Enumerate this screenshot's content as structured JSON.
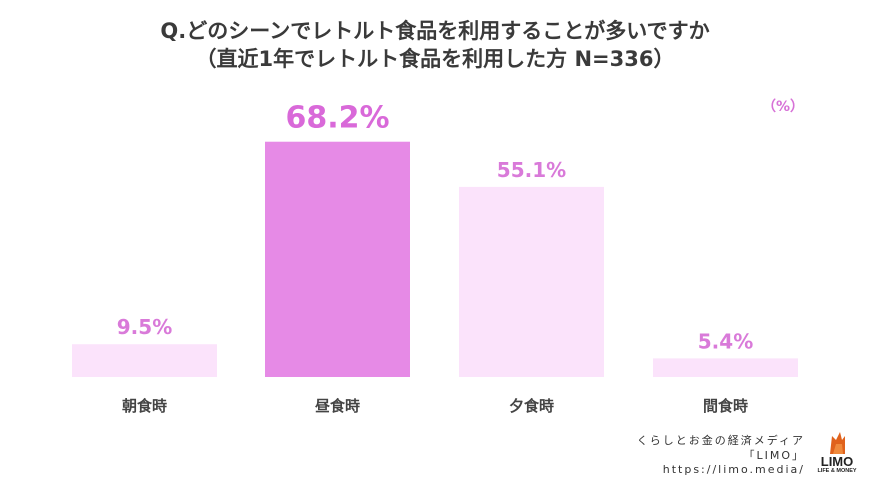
{
  "title_line1": "Q.どのシーンでレトルト食品を利用することが多いですか",
  "title_line2": "（直近1年でレトルト食品を利用した方 N=336）",
  "unit_label": "（%）",
  "footer": {
    "line1": "くらしとお金の経済メディア",
    "line2": "「LIMO」",
    "line3": "https://limo.media/"
  },
  "logo": {
    "word": "LIMO",
    "sub": "LIFE & MONEY",
    "icon": "fox-icon"
  },
  "colors": {
    "highlight": "#e68ae6",
    "normal": "#fbe3fb",
    "label": "#d97ad9",
    "highlight_label": "#d969d9",
    "category": "#444444"
  },
  "chart_data": {
    "type": "bar",
    "categories": [
      "朝食時",
      "昼食時",
      "夕食時",
      "間食時"
    ],
    "values": [
      9.5,
      68.2,
      55.1,
      5.4
    ],
    "value_labels": [
      "9.5%",
      "68.2%",
      "55.1%",
      "5.4%"
    ],
    "highlight_index": 1,
    "ylim": [
      0,
      100
    ]
  }
}
